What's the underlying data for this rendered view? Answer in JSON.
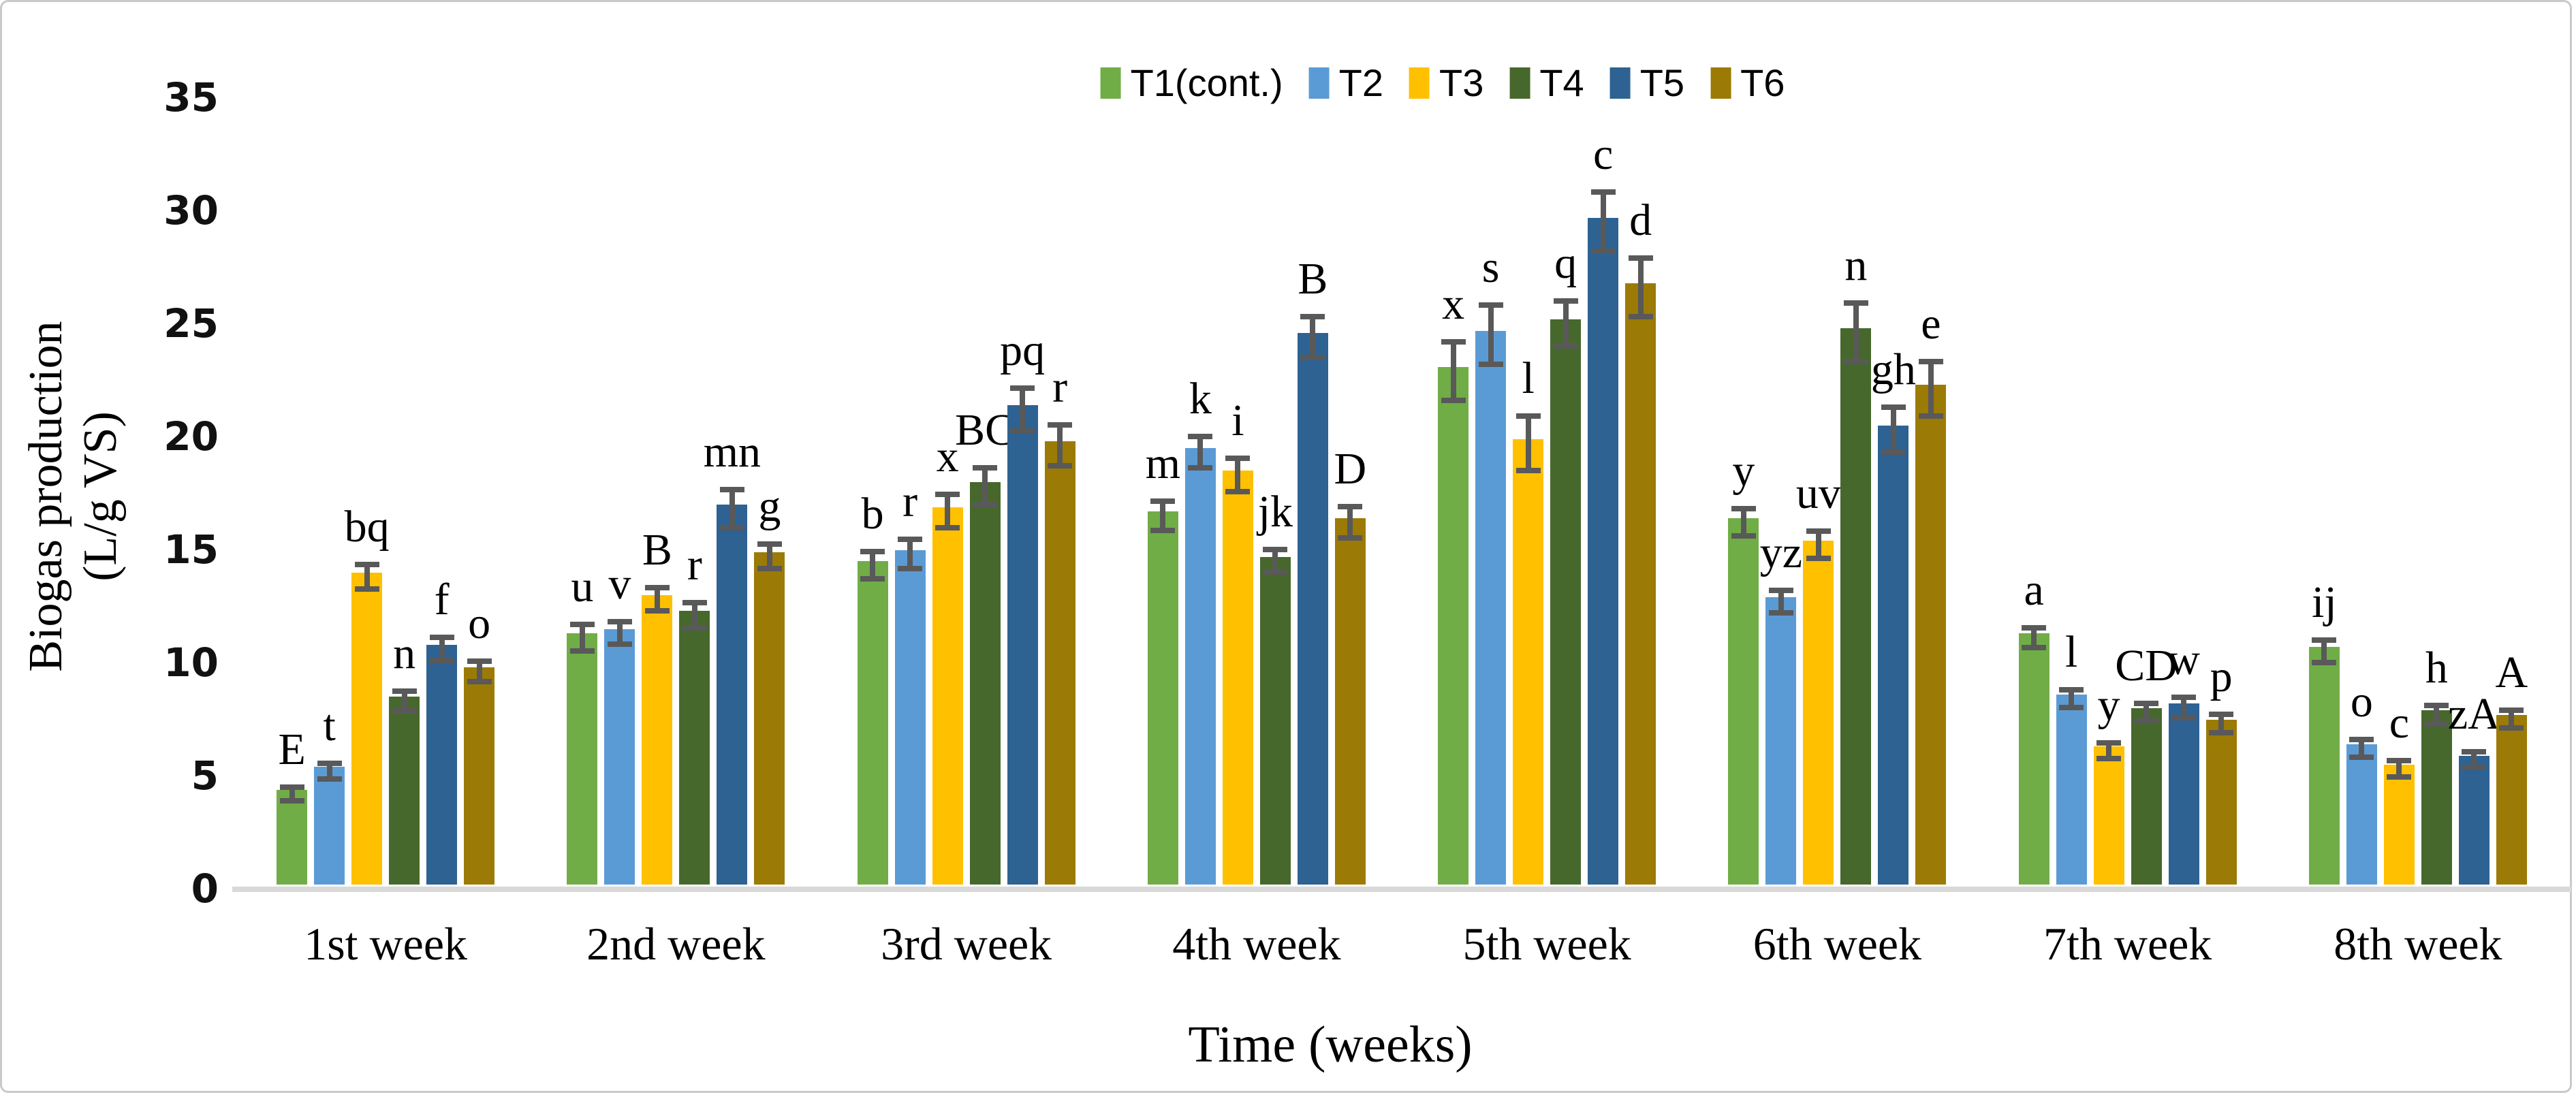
{
  "figure": {
    "background": "#FFFFFF",
    "border_color": "#C9C9C9"
  },
  "chart_data": {
    "type": "bar",
    "title": "",
    "xlabel": "Time (weeks)",
    "ylabel": "Biogas production (L/g VS)",
    "ylabel_lines": [
      "Biogas production",
      "(L/g VS)"
    ],
    "ylim": [
      0,
      35
    ],
    "yticks": [
      0,
      5,
      10,
      15,
      20,
      25,
      30,
      35
    ],
    "grid": false,
    "legend_position": "top-center",
    "axis_line_color": "#D9D9D9",
    "error_bar_color": "#595959",
    "categories": [
      "1st week",
      "2nd week",
      "3rd week",
      "4th week",
      "5th week",
      "6th week",
      "7th week",
      "8th week"
    ],
    "series": [
      {
        "name": "T1(cont.)",
        "color": "#70AD47",
        "values": [
          4.2,
          11.1,
          14.3,
          16.5,
          22.9,
          16.2,
          11.1,
          10.5
        ],
        "errors": [
          0.3,
          0.6,
          0.6,
          0.65,
          1.3,
          0.6,
          0.45,
          0.5
        ],
        "letters": [
          "E",
          "u",
          "b",
          "m",
          "x",
          "y",
          "a",
          "ij"
        ]
      },
      {
        "name": "T2",
        "color": "#5B9BD5",
        "values": [
          5.2,
          11.3,
          14.8,
          19.3,
          24.5,
          12.7,
          8.4,
          6.2
        ],
        "errors": [
          0.35,
          0.5,
          0.65,
          0.7,
          1.3,
          0.5,
          0.4,
          0.4
        ],
        "letters": [
          "t",
          "v",
          "r",
          "k",
          "s",
          "yz",
          "l",
          "o"
        ]
      },
      {
        "name": "T3",
        "color": "#FFC000",
        "values": [
          13.8,
          12.8,
          16.7,
          18.3,
          19.7,
          15.2,
          6.1,
          5.3
        ],
        "errors": [
          0.55,
          0.5,
          0.75,
          0.75,
          1.2,
          0.6,
          0.35,
          0.35
        ],
        "letters": [
          "bq",
          "B",
          "x",
          "i",
          "l",
          "uv",
          "y",
          "c"
        ]
      },
      {
        "name": "T4",
        "color": "#47682C",
        "values": [
          8.3,
          12.1,
          17.8,
          14.5,
          25.0,
          24.6,
          7.8,
          7.7
        ],
        "errors": [
          0.45,
          0.55,
          0.8,
          0.5,
          1.0,
          1.3,
          0.4,
          0.4
        ],
        "letters": [
          "n",
          "r",
          "BC",
          "jk",
          "q",
          "n",
          "CD",
          "h"
        ]
      },
      {
        "name": "T5",
        "color": "#2D6292",
        "values": [
          10.6,
          16.8,
          21.2,
          24.4,
          29.5,
          20.3,
          8.0,
          5.7
        ],
        "errors": [
          0.5,
          0.85,
          0.95,
          0.9,
          1.3,
          1.0,
          0.45,
          0.35
        ],
        "letters": [
          "f",
          "mn",
          "pq",
          "B",
          "c",
          "gh",
          "w",
          "zA"
        ]
      },
      {
        "name": "T6",
        "color": "#9C7A06",
        "values": [
          9.6,
          14.7,
          19.6,
          16.2,
          26.6,
          22.1,
          7.3,
          7.5
        ],
        "errors": [
          0.45,
          0.55,
          0.9,
          0.7,
          1.3,
          1.2,
          0.4,
          0.4
        ],
        "letters": [
          "o",
          "g",
          "r",
          "D",
          "d",
          "e",
          "p",
          "A"
        ]
      }
    ]
  }
}
